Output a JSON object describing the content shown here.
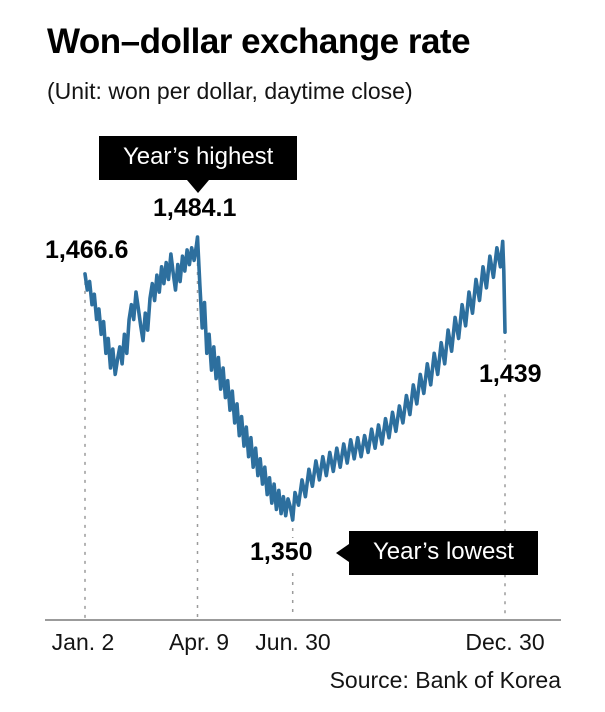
{
  "header": {
    "title": "Won–dollar exchange rate",
    "subtitle": "(Unit: won per dollar, daytime close)"
  },
  "annotations": {
    "highest_label": "Year’s highest",
    "highest_value": "1,484.1",
    "start_value": "1,466.6",
    "end_value": "1,439",
    "lowest_value": "1,350",
    "lowest_label": "Year’s lowest"
  },
  "source": "Source: Bank of Korea",
  "chart_data": {
    "type": "line",
    "title": "Won–dollar exchange rate",
    "unit": "won per dollar, daytime close",
    "line_color": "#2d6f9e",
    "grid_color": "#9b9b9b",
    "legend": "none",
    "ylim": [
      1340,
      1495
    ],
    "x_tick_days": [
      0,
      97,
      179,
      362
    ],
    "x_tick_labels": [
      "Jan. 2",
      "Apr. 9",
      "Jun. 30",
      "Dec. 30"
    ],
    "key_values": {
      "start_jan_2": 1466.6,
      "highest_apr_9": 1484.1,
      "lowest_jun_30": 1350,
      "end_dec_30": 1439
    },
    "points": [
      [
        0,
        1466.6
      ],
      [
        2,
        1459
      ],
      [
        4,
        1463
      ],
      [
        6,
        1452
      ],
      [
        8,
        1457
      ],
      [
        10,
        1445
      ],
      [
        12,
        1450
      ],
      [
        14,
        1438
      ],
      [
        16,
        1444
      ],
      [
        18,
        1429
      ],
      [
        20,
        1436
      ],
      [
        22,
        1422
      ],
      [
        24,
        1431
      ],
      [
        26,
        1419
      ],
      [
        28,
        1426
      ],
      [
        30,
        1432
      ],
      [
        32,
        1424
      ],
      [
        34,
        1438
      ],
      [
        36,
        1429
      ],
      [
        38,
        1445
      ],
      [
        40,
        1452
      ],
      [
        42,
        1445
      ],
      [
        44,
        1458
      ],
      [
        46,
        1450
      ],
      [
        48,
        1442
      ],
      [
        50,
        1435
      ],
      [
        52,
        1448
      ],
      [
        54,
        1440
      ],
      [
        56,
        1455
      ],
      [
        58,
        1462
      ],
      [
        60,
        1454
      ],
      [
        62,
        1466
      ],
      [
        64,
        1458
      ],
      [
        66,
        1470
      ],
      [
        68,
        1462
      ],
      [
        70,
        1472
      ],
      [
        72,
        1464
      ],
      [
        74,
        1476
      ],
      [
        76,
        1467
      ],
      [
        78,
        1459
      ],
      [
        80,
        1471
      ],
      [
        82,
        1463
      ],
      [
        84,
        1475
      ],
      [
        86,
        1468
      ],
      [
        88,
        1478
      ],
      [
        90,
        1471
      ],
      [
        92,
        1479
      ],
      [
        94,
        1473
      ],
      [
        96,
        1480
      ],
      [
        97,
        1484.1
      ],
      [
        99,
        1461
      ],
      [
        101,
        1441
      ],
      [
        103,
        1453
      ],
      [
        105,
        1429
      ],
      [
        107,
        1438
      ],
      [
        109,
        1421
      ],
      [
        111,
        1432
      ],
      [
        113,
        1417
      ],
      [
        115,
        1427
      ],
      [
        117,
        1412
      ],
      [
        119,
        1422
      ],
      [
        121,
        1408
      ],
      [
        123,
        1416
      ],
      [
        125,
        1402
      ],
      [
        127,
        1411
      ],
      [
        129,
        1396
      ],
      [
        131,
        1405
      ],
      [
        133,
        1390
      ],
      [
        135,
        1399
      ],
      [
        137,
        1385
      ],
      [
        139,
        1394
      ],
      [
        141,
        1380
      ],
      [
        143,
        1389
      ],
      [
        145,
        1375
      ],
      [
        147,
        1384
      ],
      [
        149,
        1371
      ],
      [
        151,
        1379
      ],
      [
        153,
        1367
      ],
      [
        155,
        1375
      ],
      [
        157,
        1362
      ],
      [
        159,
        1370
      ],
      [
        161,
        1358
      ],
      [
        163,
        1367
      ],
      [
        165,
        1355
      ],
      [
        167,
        1364
      ],
      [
        169,
        1353
      ],
      [
        171,
        1361
      ],
      [
        173,
        1352
      ],
      [
        175,
        1360
      ],
      [
        177,
        1356
      ],
      [
        179,
        1350
      ],
      [
        181,
        1363
      ],
      [
        184,
        1357
      ],
      [
        187,
        1369
      ],
      [
        190,
        1361
      ],
      [
        193,
        1374
      ],
      [
        196,
        1366
      ],
      [
        199,
        1378
      ],
      [
        202,
        1369
      ],
      [
        205,
        1380
      ],
      [
        208,
        1371
      ],
      [
        211,
        1382
      ],
      [
        214,
        1373
      ],
      [
        217,
        1384
      ],
      [
        220,
        1375
      ],
      [
        223,
        1386
      ],
      [
        226,
        1377
      ],
      [
        229,
        1388
      ],
      [
        232,
        1379
      ],
      [
        235,
        1389
      ],
      [
        238,
        1380
      ],
      [
        241,
        1390
      ],
      [
        244,
        1382
      ],
      [
        247,
        1393
      ],
      [
        250,
        1384
      ],
      [
        253,
        1395
      ],
      [
        256,
        1386
      ],
      [
        259,
        1398
      ],
      [
        262,
        1389
      ],
      [
        265,
        1401
      ],
      [
        268,
        1392
      ],
      [
        271,
        1404
      ],
      [
        274,
        1396
      ],
      [
        277,
        1409
      ],
      [
        280,
        1400
      ],
      [
        283,
        1414
      ],
      [
        286,
        1405
      ],
      [
        289,
        1419
      ],
      [
        292,
        1410
      ],
      [
        295,
        1424
      ],
      [
        298,
        1414
      ],
      [
        301,
        1429
      ],
      [
        304,
        1419
      ],
      [
        307,
        1434
      ],
      [
        310,
        1424
      ],
      [
        313,
        1440
      ],
      [
        316,
        1430
      ],
      [
        319,
        1446
      ],
      [
        322,
        1436
      ],
      [
        325,
        1452
      ],
      [
        328,
        1442
      ],
      [
        331,
        1458
      ],
      [
        334,
        1448
      ],
      [
        337,
        1464
      ],
      [
        340,
        1454
      ],
      [
        343,
        1470
      ],
      [
        346,
        1460
      ],
      [
        349,
        1475
      ],
      [
        352,
        1465
      ],
      [
        355,
        1479
      ],
      [
        358,
        1470
      ],
      [
        360,
        1482
      ],
      [
        361,
        1468
      ],
      [
        362,
        1439
      ]
    ]
  }
}
